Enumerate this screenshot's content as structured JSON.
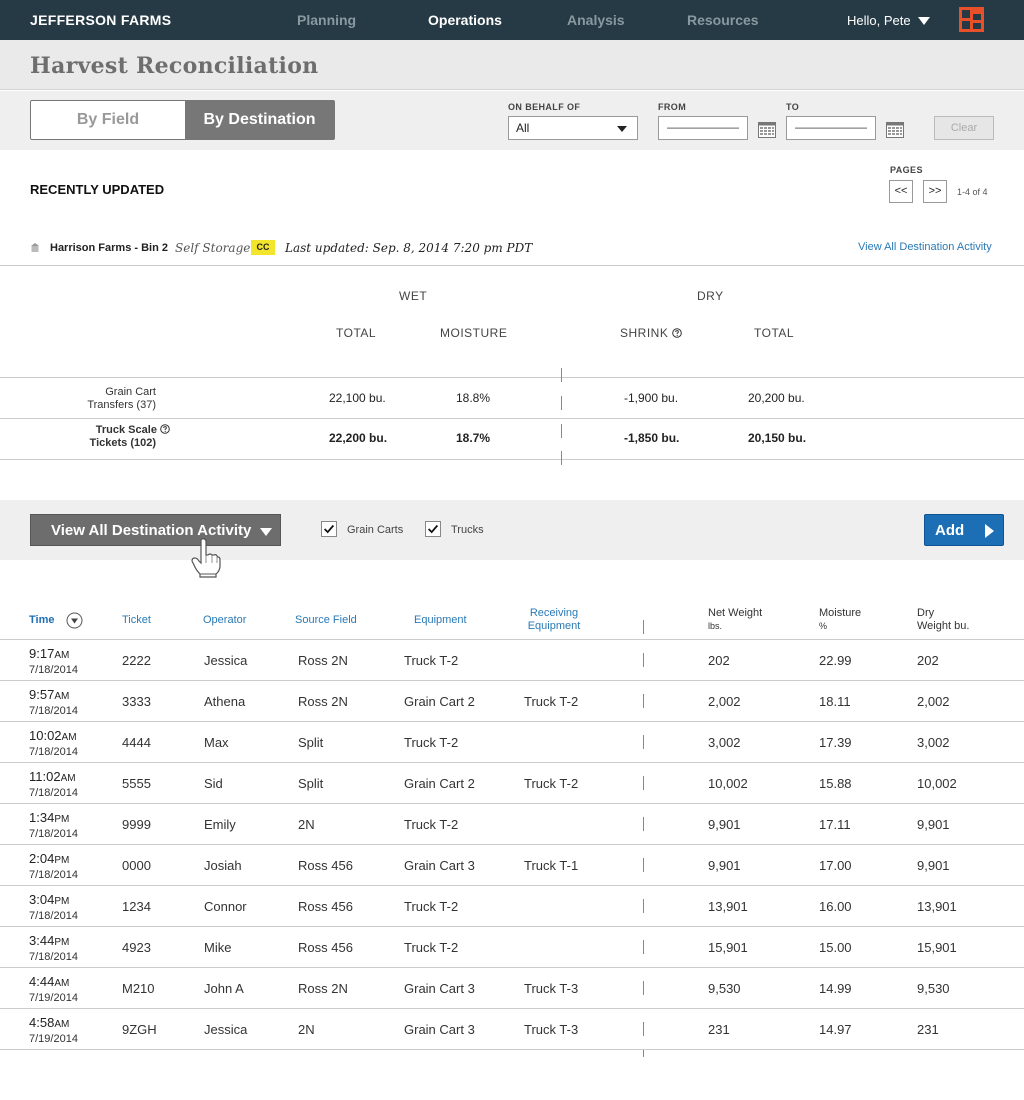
{
  "nav": {
    "brand": "JEFFERSON FARMS",
    "items": [
      "Planning",
      "Operations",
      "Analysis",
      "Resources"
    ],
    "active": "Operations",
    "greeting": "Hello, Pete"
  },
  "page_title": "Harvest Reconciliation",
  "filters": {
    "tabs": [
      "By Field",
      "By Destination"
    ],
    "active_tab": "By Destination",
    "on_behalf_label": "ON BEHALF OF",
    "on_behalf_value": "All",
    "from_label": "FROM",
    "from_value": "——————",
    "to_label": "TO",
    "to_value": "——————",
    "clear_label": "Clear"
  },
  "recent": {
    "heading": "RECENTLY UPDATED",
    "pages_label": "PAGES",
    "prev": "<<",
    "next": ">>",
    "range": "1-4 of 4",
    "bin_name": "Harrison Farms - Bin 2",
    "bin_type": "Self Storage",
    "badge": "CC",
    "last_updated": "Last updated: Sep. 8, 2014 7:20 pm PDT",
    "view_all_link": "View All Destination Activity"
  },
  "summary": {
    "wet_label": "WET",
    "dry_label": "DRY",
    "cols": [
      "TOTAL",
      "MOISTURE",
      "SHRINK",
      "TOTAL"
    ],
    "rows": [
      {
        "label1": "Grain Cart",
        "label2": "Transfers (37)",
        "wet_total": "22,100 bu.",
        "moisture": "18.8%",
        "shrink": "-1,900 bu.",
        "dry_total": "20,200 bu."
      },
      {
        "label1": "Truck  Scale",
        "label2": "Tickets (102)",
        "wet_total": "22,200 bu.",
        "moisture": "18.7%",
        "shrink": "-1,850 bu.",
        "dry_total": "20,150 bu."
      }
    ]
  },
  "activity": {
    "dropdown_label": "View All Destination Activity",
    "filter_grain_carts": "Grain Carts",
    "filter_trucks": "Trucks",
    "add_label": "Add"
  },
  "table": {
    "headers": {
      "time": "Time",
      "ticket": "Ticket",
      "operator": "Operator",
      "source_field": "Source Field",
      "equipment": "Equipment",
      "receiving_1": "Receiving",
      "receiving_2": "Equipment",
      "net_1": "Net Weight",
      "net_2": "lbs.",
      "moisture_1": "Moisture",
      "moisture_2": "%",
      "dry_1": "Dry",
      "dry_2": "Weight bu."
    },
    "rows": [
      {
        "time": "9:17",
        "ampm": "AM",
        "date": "7/18/2014",
        "ticket": "2222",
        "operator": "Jessica",
        "source": "Ross 2N",
        "equipment": "Truck T-2",
        "receiving": "",
        "net": "202",
        "moisture": "22.99",
        "dry": "202"
      },
      {
        "time": "9:57",
        "ampm": "AM",
        "date": "7/18/2014",
        "ticket": "3333",
        "operator": "Athena",
        "source": "Ross 2N",
        "equipment": "Grain Cart 2",
        "receiving": "Truck T-2",
        "net": "2,002",
        "moisture": "18.11",
        "dry": "2,002"
      },
      {
        "time": "10:02",
        "ampm": "AM",
        "date": "7/18/2014",
        "ticket": "4444",
        "operator": "Max",
        "source": "Split",
        "equipment": "Truck T-2",
        "receiving": "",
        "net": "3,002",
        "moisture": "17.39",
        "dry": "3,002"
      },
      {
        "time": "11:02",
        "ampm": "AM",
        "date": "7/18/2014",
        "ticket": "5555",
        "operator": "Sid",
        "source": "Split",
        "equipment": "Grain Cart 2",
        "receiving": "Truck T-2",
        "net": "10,002",
        "moisture": "15.88",
        "dry": "10,002"
      },
      {
        "time": "1:34",
        "ampm": "PM",
        "date": "7/18/2014",
        "ticket": "9999",
        "operator": "Emily",
        "source": "2N",
        "equipment": "Truck T-2",
        "receiving": "",
        "net": "9,901",
        "moisture": "17.11",
        "dry": "9,901"
      },
      {
        "time": "2:04",
        "ampm": "PM",
        "date": "7/18/2014",
        "ticket": "0000",
        "operator": "Josiah",
        "source": "Ross 456",
        "equipment": "Grain Cart 3",
        "receiving": "Truck T-1",
        "net": "9,901",
        "moisture": "17.00",
        "dry": "9,901"
      },
      {
        "time": "3:04",
        "ampm": "PM",
        "date": "7/18/2014",
        "ticket": "1234",
        "operator": "Connor",
        "source": "Ross 456",
        "equipment": "Truck T-2",
        "receiving": "",
        "net": "13,901",
        "moisture": "16.00",
        "dry": "13,901"
      },
      {
        "time": "3:44",
        "ampm": "PM",
        "date": "7/18/2014",
        "ticket": "4923",
        "operator": "Mike",
        "source": "Ross 456",
        "equipment": "Truck T-2",
        "receiving": "",
        "net": "15,901",
        "moisture": "15.00",
        "dry": "15,901"
      },
      {
        "time": "4:44",
        "ampm": "AM",
        "date": "7/19/2014",
        "ticket": "M210",
        "operator": "John A",
        "source": "Ross 2N",
        "equipment": "Grain Cart 3",
        "receiving": "Truck T-3",
        "net": "9,530",
        "moisture": "14.99",
        "dry": "9,530"
      },
      {
        "time": "4:58",
        "ampm": "AM",
        "date": "7/19/2014",
        "ticket": "9ZGH",
        "operator": "Jessica",
        "source": "2N",
        "equipment": "Grain Cart 3",
        "receiving": "Truck T-3",
        "net": "231",
        "moisture": "14.97",
        "dry": "231"
      }
    ]
  },
  "colors": {
    "nav_bg": "#263a45",
    "link": "#2a7ab5",
    "add_button": "#1d6fb5",
    "badge": "#f3e52b",
    "logo": "#e8502a"
  }
}
